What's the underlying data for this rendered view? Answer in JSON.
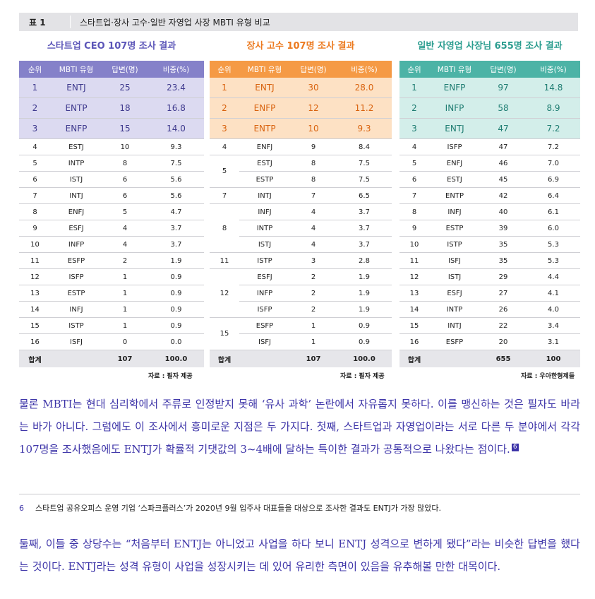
{
  "caption": {
    "number": "표 1",
    "title": "스타트업·장사 고수·일반 자영업 사장 MBTI 유형 비교"
  },
  "tables": {
    "startup": {
      "title": "스타트업 CEO 107명 조사 결과",
      "headers": [
        "순위",
        "MBTI 유형",
        "답변(명)",
        "비중(%)"
      ],
      "rows": [
        {
          "rank": "1",
          "type": "ENTJ",
          "count": "25",
          "pct": "23.4"
        },
        {
          "rank": "2",
          "type": "ENTP",
          "count": "18",
          "pct": "16.8"
        },
        {
          "rank": "3",
          "type": "ENFP",
          "count": "15",
          "pct": "14.0"
        },
        {
          "rank": "4",
          "type": "ESTJ",
          "count": "10",
          "pct": "9.3"
        },
        {
          "rank": "5",
          "type": "INTP",
          "count": "8",
          "pct": "7.5"
        },
        {
          "rank": "6",
          "type": "ISTJ",
          "count": "6",
          "pct": "5.6"
        },
        {
          "rank": "7",
          "type": "INTJ",
          "count": "6",
          "pct": "5.6"
        },
        {
          "rank": "8",
          "type": "ENFJ",
          "count": "5",
          "pct": "4.7"
        },
        {
          "rank": "9",
          "type": "ESFJ",
          "count": "4",
          "pct": "3.7"
        },
        {
          "rank": "10",
          "type": "INFP",
          "count": "4",
          "pct": "3.7"
        },
        {
          "rank": "11",
          "type": "ESFP",
          "count": "2",
          "pct": "1.9"
        },
        {
          "rank": "12",
          "type": "ISFP",
          "count": "1",
          "pct": "0.9"
        },
        {
          "rank": "13",
          "type": "ESTP",
          "count": "1",
          "pct": "0.9"
        },
        {
          "rank": "14",
          "type": "INFJ",
          "count": "1",
          "pct": "0.9"
        },
        {
          "rank": "15",
          "type": "ISTP",
          "count": "1",
          "pct": "0.9"
        },
        {
          "rank": "16",
          "type": "ISFJ",
          "count": "0",
          "pct": "0.0"
        }
      ],
      "total": {
        "label": "합계",
        "count": "107",
        "pct": "100.0"
      },
      "source": "자료 : 필자 제공"
    },
    "expert": {
      "title": "장사 고수 107명 조사 결과",
      "headers": [
        "순위",
        "MBTI 유형",
        "답변(명)",
        "비중(%)"
      ],
      "rows": [
        {
          "rank": "1",
          "type": "ENTJ",
          "count": "30",
          "pct": "28.0"
        },
        {
          "rank": "2",
          "type": "ENFP",
          "count": "12",
          "pct": "11.2"
        },
        {
          "rank": "3",
          "type": "ENTP",
          "count": "10",
          "pct": "9.3"
        },
        {
          "rank": "4",
          "type": "ENFJ",
          "count": "9",
          "pct": "8.4"
        },
        {
          "rank": "5",
          "type": "ESTJ",
          "count": "8",
          "pct": "7.5"
        },
        {
          "rank": "",
          "type": "ESTP",
          "count": "8",
          "pct": "7.5"
        },
        {
          "rank": "7",
          "type": "INTJ",
          "count": "7",
          "pct": "6.5"
        },
        {
          "rank": "8",
          "type": "INFJ",
          "count": "4",
          "pct": "3.7"
        },
        {
          "rank": "",
          "type": "INTP",
          "count": "4",
          "pct": "3.7"
        },
        {
          "rank": "",
          "type": "ISTJ",
          "count": "4",
          "pct": "3.7"
        },
        {
          "rank": "11",
          "type": "ISTP",
          "count": "3",
          "pct": "2.8"
        },
        {
          "rank": "12",
          "type": "ESFJ",
          "count": "2",
          "pct": "1.9"
        },
        {
          "rank": "",
          "type": "INFP",
          "count": "2",
          "pct": "1.9"
        },
        {
          "rank": "",
          "type": "ISFP",
          "count": "2",
          "pct": "1.9"
        },
        {
          "rank": "15",
          "type": "ESFP",
          "count": "1",
          "pct": "0.9"
        },
        {
          "rank": "",
          "type": "ISFJ",
          "count": "1",
          "pct": "0.9"
        }
      ],
      "total": {
        "label": "합계",
        "count": "107",
        "pct": "100.0"
      },
      "source": "자료 : 필자 제공"
    },
    "general": {
      "title": "일반 자영업 사장님 655명 조사 결과",
      "headers": [
        "순위",
        "MBTI 유형",
        "답변(명)",
        "비중(%)"
      ],
      "rows": [
        {
          "rank": "1",
          "type": "ENFP",
          "count": "97",
          "pct": "14.8"
        },
        {
          "rank": "2",
          "type": "INFP",
          "count": "58",
          "pct": "8.9"
        },
        {
          "rank": "3",
          "type": "ENTJ",
          "count": "47",
          "pct": "7.2"
        },
        {
          "rank": "4",
          "type": "ISFP",
          "count": "47",
          "pct": "7.2"
        },
        {
          "rank": "5",
          "type": "ENFJ",
          "count": "46",
          "pct": "7.0"
        },
        {
          "rank": "6",
          "type": "ESTJ",
          "count": "45",
          "pct": "6.9"
        },
        {
          "rank": "7",
          "type": "ENTP",
          "count": "42",
          "pct": "6.4"
        },
        {
          "rank": "8",
          "type": "INFJ",
          "count": "40",
          "pct": "6.1"
        },
        {
          "rank": "9",
          "type": "ESTP",
          "count": "39",
          "pct": "6.0"
        },
        {
          "rank": "10",
          "type": "ISTP",
          "count": "35",
          "pct": "5.3"
        },
        {
          "rank": "11",
          "type": "ISFJ",
          "count": "35",
          "pct": "5.3"
        },
        {
          "rank": "12",
          "type": "ISTJ",
          "count": "29",
          "pct": "4.4"
        },
        {
          "rank": "13",
          "type": "ESFJ",
          "count": "27",
          "pct": "4.1"
        },
        {
          "rank": "14",
          "type": "INTP",
          "count": "26",
          "pct": "4.0"
        },
        {
          "rank": "15",
          "type": "INTJ",
          "count": "22",
          "pct": "3.4"
        },
        {
          "rank": "16",
          "type": "ESFP",
          "count": "20",
          "pct": "3.1"
        }
      ],
      "total": {
        "label": "합계",
        "count": "655",
        "pct": "100"
      },
      "source": "자료 : 우아한형제들"
    }
  },
  "body": {
    "paragraph1": "물론 MBTI는 현대 심리학에서 주류로 인정받지 못해 ‘유사 과학’ 논란에서 자유롭지 못하다. 이를 맹신하는 것은 필자도 바라는 바가 아니다. 그럼에도 이 조사에서 흥미로운 지점은 두 가지다. 첫째, 스타트업과 자영업이라는 서로 다른 두 분야에서 각각 107명을 조사했음에도 ENTJ가 확률적 기댓값의 3~4배에 달하는 특이한 결과가 공통적으로 나왔다는 점이다.",
    "footnote_marker": "6",
    "paragraph2": "둘째, 이들 중 상당수는 “처음부터 ENTJ는 아니었고 사업을 하다 보니 ENTJ 성격으로 변하게 됐다”라는 비슷한 답변을 했다는 것이다. ENTJ라는 성격 유형이 사업을 성장시키는 데 있어 유리한 측면이 있음을 유추해볼 만한 대목이다."
  },
  "footnote": {
    "number": "6",
    "text": "스타트업 공유오피스 운영 기업 ‘스파크플러스’가 2020년 9월 입주사 대표들을 대상으로 조사한 결과도 ENTJ가 가장 많았다."
  }
}
